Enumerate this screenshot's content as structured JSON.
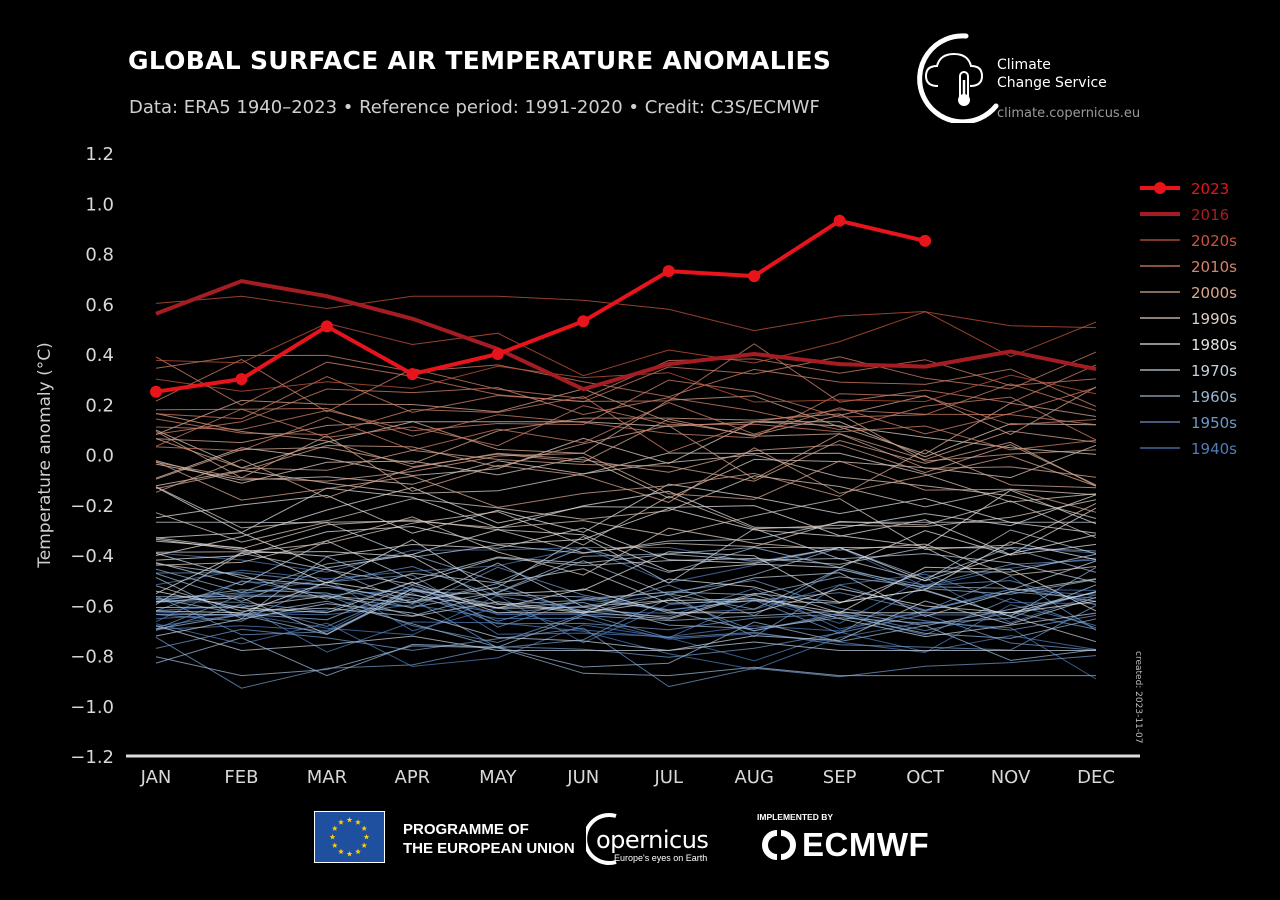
{
  "header": {
    "title": "GLOBAL SURFACE AIR TEMPERATURE ANOMALIES",
    "subtitle": "Data: ERA5 1940–2023 • Reference period: 1991-2020 • Credit: C3S/ECMWF"
  },
  "brand": {
    "service_line1": "Climate",
    "service_line2": "Change Service",
    "url": "climate.copernicus.eu",
    "created": "created: 2023-11-07"
  },
  "footer": {
    "programme_line1": "PROGRAMME OF",
    "programme_line2": "THE EUROPEAN UNION",
    "copernicus_word": "opernicus",
    "copernicus_tag": "Europe's eyes on Earth",
    "implemented_by": "IMPLEMENTED BY",
    "ecmwf": "ECMWF"
  },
  "colors": {
    "background": "#000000",
    "highlight_2023": "#e8141b",
    "highlight_2016": "#a51d22",
    "eu_blue": "#1f4f9f",
    "eu_star": "#ffcc00"
  },
  "chart_data": {
    "type": "line",
    "title": "GLOBAL SURFACE AIR TEMPERATURE ANOMALIES",
    "xlabel": "",
    "ylabel": "Temperature anomaly (°C)",
    "categories": [
      "JAN",
      "FEB",
      "MAR",
      "APR",
      "MAY",
      "JUN",
      "JUL",
      "AUG",
      "SEP",
      "OCT",
      "NOV",
      "DEC"
    ],
    "ylim": [
      -1.2,
      1.2
    ],
    "yticks": [
      -1.2,
      -1.0,
      -0.8,
      -0.6,
      -0.4,
      -0.2,
      0.0,
      0.2,
      0.4,
      0.6,
      0.8,
      1.0,
      1.2
    ],
    "ytick_labels": [
      "−1.2",
      "−1.0",
      "−0.8",
      "−0.6",
      "−0.4",
      "−0.2",
      "0.0",
      "0.2",
      "0.4",
      "0.6",
      "0.8",
      "1.0",
      "1.2"
    ],
    "grid": false,
    "legend_position": "right",
    "legend": [
      {
        "label": "2023",
        "color": "#e8141b",
        "style": "thick-marker"
      },
      {
        "label": "2016",
        "color": "#a51d22",
        "style": "thick"
      },
      {
        "label": "2020s",
        "color": "#c8553b",
        "style": "thin"
      },
      {
        "label": "2010s",
        "color": "#d6836a",
        "style": "thin"
      },
      {
        "label": "2000s",
        "color": "#dba892",
        "style": "thin"
      },
      {
        "label": "1990s",
        "color": "#dfcdc2",
        "style": "thin"
      },
      {
        "label": "1980s",
        "color": "#e2e2e2",
        "style": "thin"
      },
      {
        "label": "1970s",
        "color": "#c2cfdc",
        "style": "thin"
      },
      {
        "label": "1960s",
        "color": "#98b5d4",
        "style": "thin"
      },
      {
        "label": "1950s",
        "color": "#6f97c8",
        "style": "thin"
      },
      {
        "label": "1940s",
        "color": "#4f7cbb",
        "style": "thin"
      }
    ],
    "series": [
      {
        "name": "2023",
        "values": [
          0.25,
          0.3,
          0.51,
          0.32,
          0.4,
          0.53,
          0.73,
          0.71,
          0.93,
          0.85,
          null,
          null
        ]
      },
      {
        "name": "2016",
        "values": [
          0.56,
          0.69,
          0.63,
          0.54,
          0.42,
          0.26,
          0.36,
          0.4,
          0.36,
          0.35,
          0.41,
          0.34
        ]
      }
    ],
    "decades": [
      {
        "name": "1940s",
        "count": 10,
        "range": [
          -0.95,
          -0.45
        ]
      },
      {
        "name": "1950s",
        "count": 10,
        "range": [
          -0.85,
          -0.5
        ]
      },
      {
        "name": "1960s",
        "count": 10,
        "range": [
          -0.8,
          -0.45
        ]
      },
      {
        "name": "1970s",
        "count": 10,
        "range": [
          -0.7,
          -0.35
        ]
      },
      {
        "name": "1980s",
        "count": 10,
        "range": [
          -0.55,
          -0.15
        ]
      },
      {
        "name": "1990s",
        "count": 10,
        "range": [
          -0.4,
          0.05
        ]
      },
      {
        "name": "2000s",
        "count": 10,
        "range": [
          -0.15,
          0.2
        ]
      },
      {
        "name": "2010s",
        "count": 10,
        "range": [
          -0.05,
          0.45
        ]
      },
      {
        "name": "2020s",
        "count": 3,
        "range": [
          0.15,
          0.55
        ]
      }
    ]
  }
}
